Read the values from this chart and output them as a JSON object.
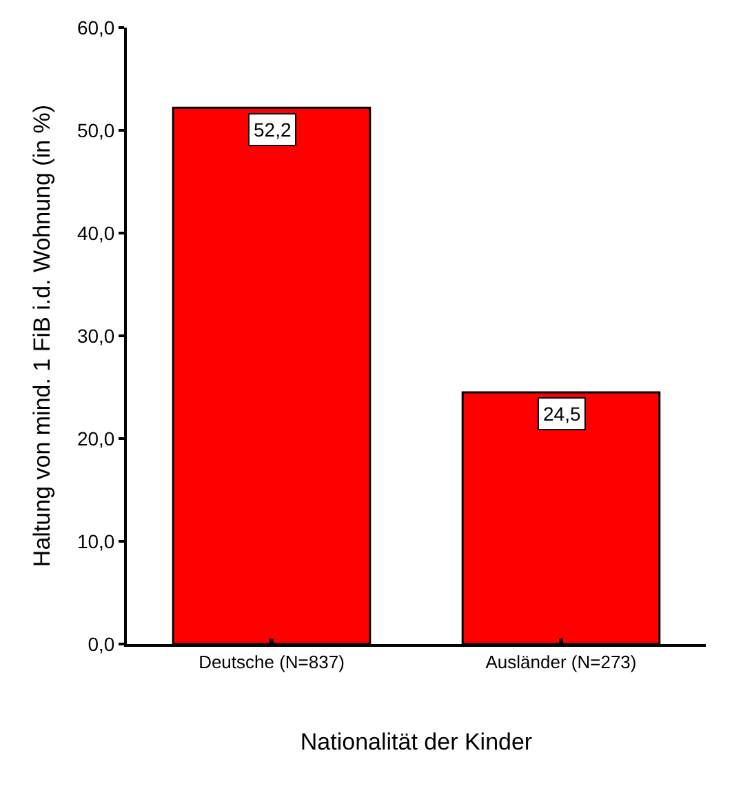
{
  "chart_data": {
    "type": "bar",
    "xlabel": "Nationalität der Kinder",
    "ylabel": "Haltung von mind. 1 FiB i.d. Wohnung (in %)",
    "categories": [
      "Deutsche (N=837)",
      "Ausländer (N=273)"
    ],
    "values": [
      52.2,
      24.5
    ],
    "value_labels": [
      "52,2",
      "24,5"
    ],
    "color": "#ff0000",
    "ylim": [
      0,
      60
    ],
    "yticks": [
      {
        "value": 0,
        "label": "0,0"
      },
      {
        "value": 10,
        "label": "10,0"
      },
      {
        "value": 20,
        "label": "20,0"
      },
      {
        "value": 30,
        "label": "30,0"
      },
      {
        "value": 40,
        "label": "40,0"
      },
      {
        "value": 50,
        "label": "50,0"
      },
      {
        "value": 60,
        "label": "60,0"
      }
    ],
    "legend": false
  }
}
